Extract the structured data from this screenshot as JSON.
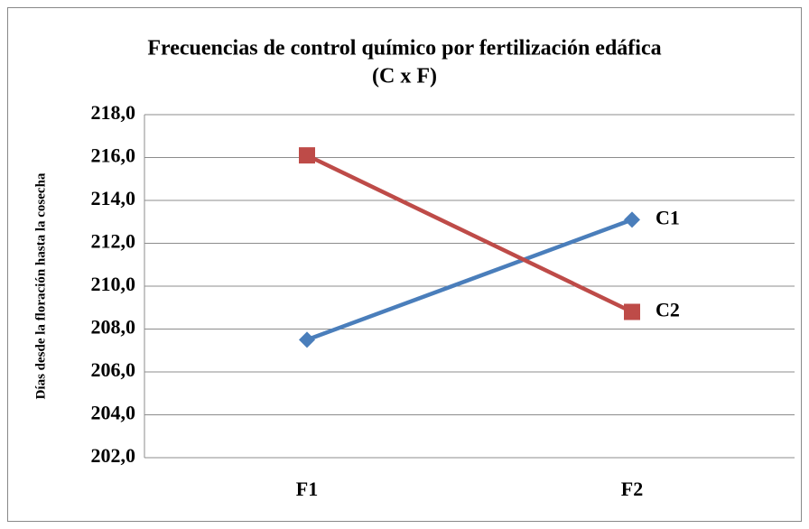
{
  "chart_data": {
    "type": "line",
    "title": [
      "Frecuencias de control químico por fertilización edáfica",
      "(C x F)"
    ],
    "y_label": "Días desde la floración hasta la cosecha",
    "categories": [
      "F1",
      "F2"
    ],
    "series": [
      {
        "name": "C1",
        "color": "#4a7ebb",
        "marker": "diamond",
        "values": [
          207.5,
          213.1
        ]
      },
      {
        "name": "C2",
        "color": "#be4b48",
        "marker": "square",
        "values": [
          216.1,
          208.8
        ]
      }
    ],
    "ylim": [
      202,
      218
    ],
    "yticks": [
      {
        "value": 202,
        "label": "202,0"
      },
      {
        "value": 204,
        "label": "204,0"
      },
      {
        "value": 206,
        "label": "206,0"
      },
      {
        "value": 208,
        "label": "208,0"
      },
      {
        "value": 210,
        "label": "210,0"
      },
      {
        "value": 212,
        "label": "212,0"
      },
      {
        "value": 214,
        "label": "214,0"
      },
      {
        "value": 216,
        "label": "216,0"
      },
      {
        "value": 218,
        "label": "218,0"
      }
    ],
    "grid": true
  }
}
